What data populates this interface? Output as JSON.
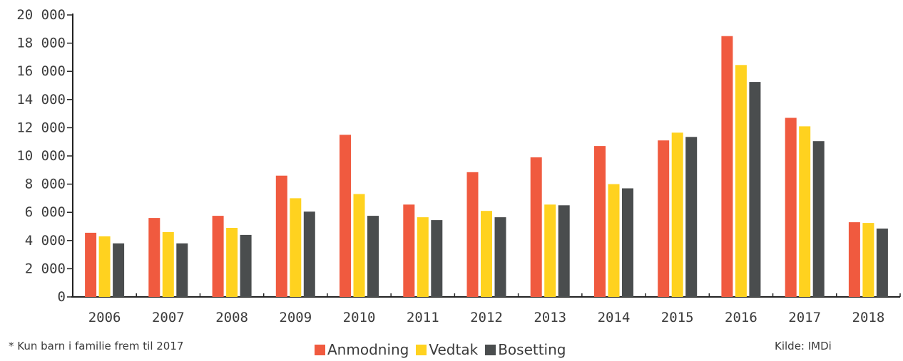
{
  "chart_data": {
    "type": "bar",
    "categories": [
      "2006",
      "2007",
      "2008",
      "2009",
      "2010",
      "2011",
      "2012",
      "2013",
      "2014",
      "2015",
      "2016",
      "2017",
      "2018"
    ],
    "series": [
      {
        "name": "Anmodning",
        "color": "#f05a3f",
        "values": [
          4550,
          5600,
          5750,
          8600,
          11500,
          6550,
          8850,
          9900,
          10700,
          11100,
          18500,
          12700,
          5300
        ]
      },
      {
        "name": "Vedtak",
        "color": "#ffd21f",
        "values": [
          4300,
          4600,
          4900,
          7000,
          7300,
          5650,
          6100,
          6550,
          8000,
          11650,
          16450,
          12100,
          5250
        ]
      },
      {
        "name": "Bosetting",
        "color": "#4a4d4e",
        "values": [
          3800,
          3800,
          4400,
          6050,
          5750,
          5450,
          5650,
          6500,
          7700,
          11350,
          15250,
          11050,
          4850
        ]
      }
    ],
    "yticks": [
      "0",
      "2 000",
      "4 000",
      "6 000",
      "8 000",
      "10 000",
      "12 000",
      "14 000",
      "16 000",
      "18 000",
      "20 000"
    ],
    "ylim": [
      0,
      20000
    ],
    "title": "",
    "xlabel": "",
    "ylabel": "",
    "legend_position": "bottom-center",
    "grid": false
  },
  "footnote": "* Kun barn i familie frem til 2017",
  "source": "Kilde: IMDi"
}
